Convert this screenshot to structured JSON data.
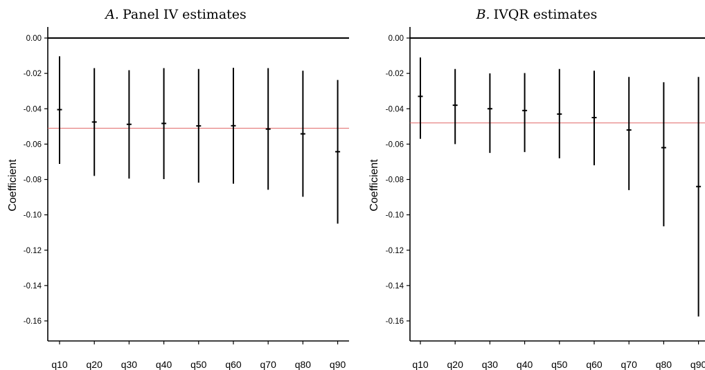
{
  "chart_data": [
    {
      "type": "errorbar",
      "title": "A. Panel IV estimates",
      "title_prefix": "A.",
      "title_text": "Panel IV estimates",
      "ylabel": "Coefficient",
      "xlabel": "",
      "ylim": [
        -0.172,
        0.007
      ],
      "yticks": [
        "0.00",
        "-0.02",
        "-0.04",
        "-0.06",
        "-0.08",
        "-0.10",
        "-0.12",
        "-0.14",
        "-0.16"
      ],
      "ytick_values": [
        0,
        -0.02,
        -0.04,
        -0.06,
        -0.08,
        -0.1,
        -0.12,
        -0.14,
        -0.16
      ],
      "categories": [
        "q10",
        "q20",
        "q30",
        "q40",
        "q50",
        "q60",
        "q70",
        "q80",
        "q90"
      ],
      "estimates": [
        -0.0405,
        -0.0475,
        -0.0488,
        -0.0483,
        -0.0497,
        -0.0496,
        -0.0515,
        -0.0542,
        -0.0643
      ],
      "lower": [
        -0.0712,
        -0.078,
        -0.0795,
        -0.0798,
        -0.0818,
        -0.0824,
        -0.0858,
        -0.0898,
        -0.105
      ],
      "upper": [
        -0.0103,
        -0.017,
        -0.0182,
        -0.017,
        -0.0175,
        -0.0168,
        -0.017,
        -0.0185,
        -0.0237
      ],
      "reference_line": -0.051,
      "reference_color": "#e06666",
      "zero_line": 0,
      "grid": false
    },
    {
      "type": "errorbar",
      "title": "B. IVQR estimates",
      "title_prefix": "B.",
      "title_text": "IVQR estimates",
      "ylabel": "Coefficient",
      "xlabel": "",
      "ylim": [
        -0.172,
        0.007
      ],
      "yticks": [
        "0.00",
        "-0.02",
        "-0.04",
        "-0.06",
        "-0.08",
        "-0.10",
        "-0.12",
        "-0.14",
        "-0.16"
      ],
      "ytick_values": [
        0,
        -0.02,
        -0.04,
        -0.06,
        -0.08,
        -0.1,
        -0.12,
        -0.14,
        -0.16
      ],
      "categories": [
        "q10",
        "q20",
        "q30",
        "q40",
        "q50",
        "q60",
        "q70",
        "q80",
        "q90"
      ],
      "estimates": [
        -0.033,
        -0.038,
        -0.04,
        -0.041,
        -0.043,
        -0.045,
        -0.052,
        -0.062,
        -0.084
      ],
      "lower": [
        -0.057,
        -0.06,
        -0.065,
        -0.0645,
        -0.068,
        -0.072,
        -0.086,
        -0.1065,
        -0.1575
      ],
      "upper": [
        -0.011,
        -0.0175,
        -0.02,
        -0.0198,
        -0.0175,
        -0.0185,
        -0.022,
        -0.025,
        -0.022
      ],
      "reference_line": -0.048,
      "reference_color": "#e06666",
      "zero_line": 0,
      "grid": false
    }
  ]
}
